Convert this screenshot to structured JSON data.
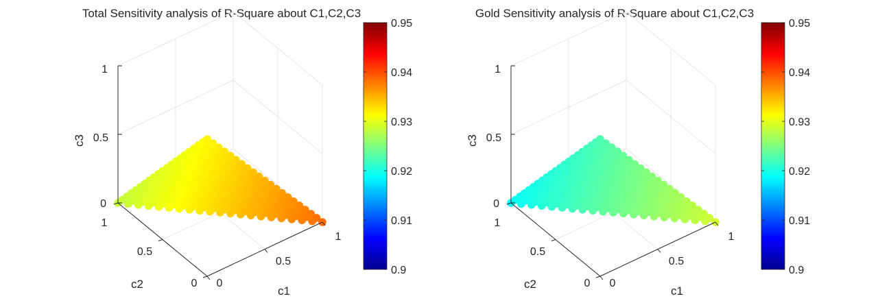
{
  "colormap": {
    "name": "jet",
    "stops": [
      "#00008f",
      "#0000ff",
      "#00ffff",
      "#ffff00",
      "#ff0000",
      "#800000"
    ]
  },
  "chart_data": [
    {
      "type": "scatter3d",
      "title": "Total Sensitivity analysis of R-Square about C1,C2,C3",
      "xlabel": "c1",
      "ylabel": "c2",
      "zlabel": "c3",
      "xlim": [
        0,
        1
      ],
      "ylim": [
        0,
        1
      ],
      "zlim": [
        0,
        1
      ],
      "xticks": [
        "0",
        "0.5",
        "1"
      ],
      "yticks": [
        "0",
        "0.5",
        "1"
      ],
      "zticks": [
        "0",
        "0.5",
        "1"
      ],
      "grid": true,
      "points": "c1 + c2 + c3 = 1, step 0.05",
      "value_model": {
        "base": 0.9315,
        "c1_coef": 0.007,
        "c2_coef": -0.0032,
        "c3_coef": 0.0
      },
      "colorbar": {
        "range": [
          0.9,
          0.95
        ],
        "ticks": [
          "0.9",
          "0.91",
          "0.92",
          "0.93",
          "0.94",
          "0.95"
        ]
      }
    },
    {
      "type": "scatter3d",
      "title": "Gold Sensitivity analysis of R-Square about C1,C2,C3",
      "xlabel": "c1",
      "ylabel": "c2",
      "zlabel": "c3",
      "xlim": [
        0,
        1
      ],
      "ylim": [
        0,
        1
      ],
      "zlim": [
        0,
        1
      ],
      "xticks": [
        "0",
        "0.5",
        "1"
      ],
      "yticks": [
        "0",
        "0.5",
        "1"
      ],
      "zticks": [
        "0",
        "0.5",
        "1"
      ],
      "grid": true,
      "points": "c1 + c2 + c3 = 1, step 0.05",
      "value_model": {
        "base": 0.9225,
        "c1_coef": 0.0065,
        "c2_coef": -0.0035,
        "c3_coef": 0.0
      },
      "colorbar": {
        "range": [
          0.9,
          0.95
        ],
        "ticks": [
          "0.9",
          "0.91",
          "0.92",
          "0.93",
          "0.94",
          "0.95"
        ]
      }
    }
  ]
}
